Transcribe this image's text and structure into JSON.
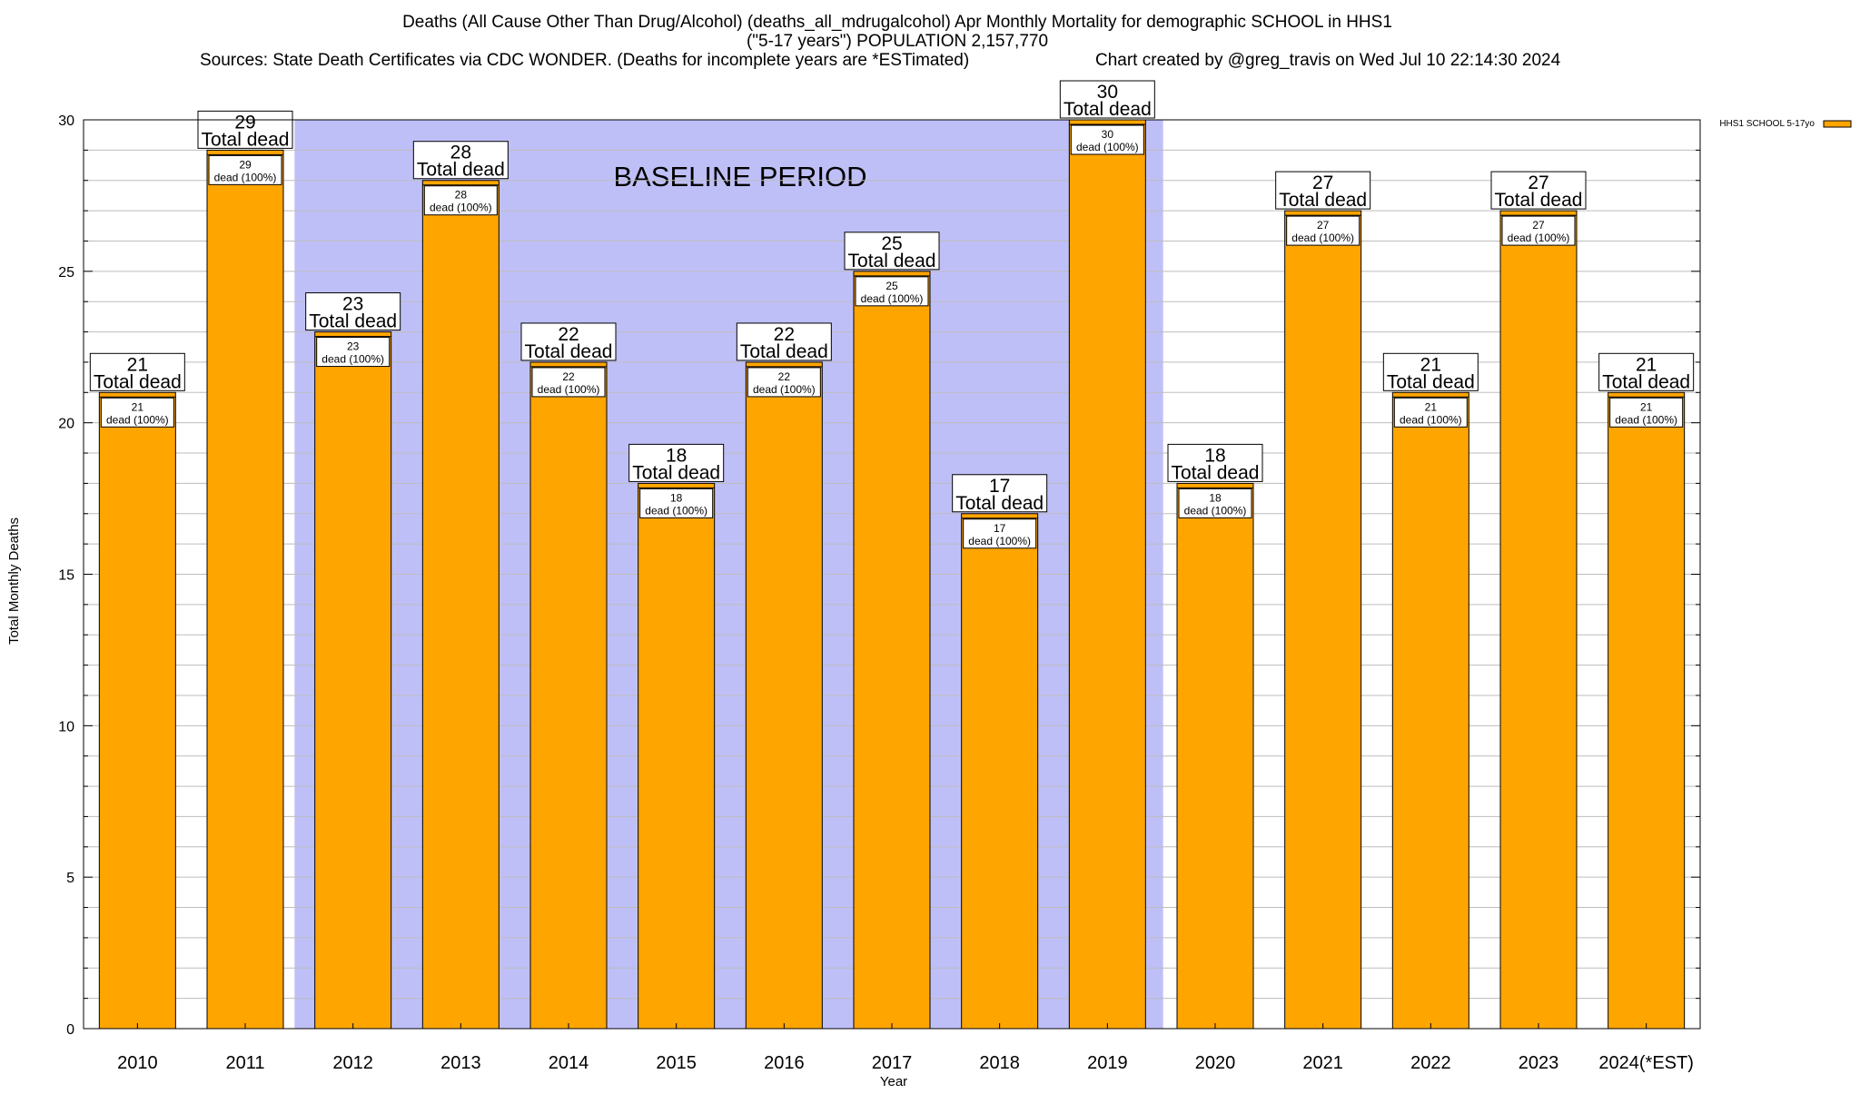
{
  "chart_data": {
    "type": "bar",
    "title_lines": [
      "Deaths (All Cause Other Than Drug/Alcohol) (deaths_all_mdrugalcohol) Apr Monthly Mortality for demographic SCHOOL in HHS1",
      "(\"5-17 years\") POPULATION 2,157,770"
    ],
    "sources": "Sources: State Death Certificates via CDC WONDER. (Deaths for incomplete years are *ESTimated)",
    "credit": "Chart created by @greg_travis on Wed Jul 10 22:14:30 2024",
    "xlabel": "Year",
    "ylabel": "Total Monthly Deaths",
    "ylim": [
      0,
      30
    ],
    "yticks": [
      0,
      5,
      10,
      15,
      20,
      25,
      30
    ],
    "categories": [
      "2010",
      "2011",
      "2012",
      "2013",
      "2014",
      "2015",
      "2016",
      "2017",
      "2018",
      "2019",
      "2020",
      "2021",
      "2022",
      "2023",
      "2024(*EST)"
    ],
    "series": [
      {
        "name": "HHS1 SCHOOL 5-17yo",
        "color": "#ffa500",
        "values": [
          21,
          29,
          23,
          28,
          22,
          18,
          22,
          25,
          17,
          30,
          18,
          27,
          21,
          27,
          21
        ]
      }
    ],
    "total_label_text": "Total dead",
    "inner_label_text": "dead (100%)",
    "baseline": {
      "label": "BASELINE PERIOD",
      "start": "2012",
      "end": "2019",
      "color": "#bfbff8"
    },
    "legend_position": "top-right",
    "grid": true
  }
}
